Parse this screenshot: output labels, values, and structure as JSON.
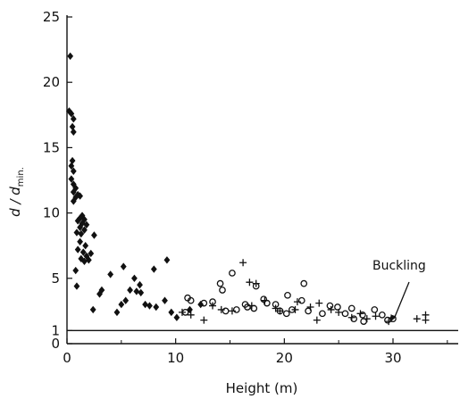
{
  "chart_data": {
    "type": "scatter",
    "title": "",
    "xlabel": "Height (m)",
    "ylabel": "d / d min.",
    "ylabel_parts": {
      "main": "d / d",
      "sub": "min."
    },
    "xlim": [
      0,
      36
    ],
    "ylim": [
      0,
      25
    ],
    "xticks": [
      0,
      10,
      20,
      30
    ],
    "xtick_labels": [
      "0",
      "10",
      "20",
      "30"
    ],
    "yticks": [
      0,
      1,
      5,
      10,
      15,
      20,
      25
    ],
    "ytick_labels": [
      "0",
      "1",
      "5",
      "10",
      "15",
      "20",
      "25"
    ],
    "grid": false,
    "reference_line": {
      "y": 1
    },
    "annotation": {
      "text": "Buckling",
      "points_to": [
        29.8,
        1.7
      ]
    },
    "series": [
      {
        "marker": "filled-diamond",
        "points": [
          [
            0.3,
            22.0
          ],
          [
            0.2,
            17.8
          ],
          [
            0.4,
            17.6
          ],
          [
            0.6,
            17.2
          ],
          [
            0.5,
            16.6
          ],
          [
            0.6,
            16.2
          ],
          [
            0.5,
            14.0
          ],
          [
            0.4,
            13.6
          ],
          [
            0.6,
            13.2
          ],
          [
            0.4,
            12.6
          ],
          [
            0.6,
            12.2
          ],
          [
            0.8,
            11.9
          ],
          [
            0.6,
            11.6
          ],
          [
            1.0,
            11.4
          ],
          [
            0.8,
            11.2
          ],
          [
            1.2,
            11.3
          ],
          [
            0.6,
            10.9
          ],
          [
            1.4,
            9.8
          ],
          [
            1.2,
            9.6
          ],
          [
            1.6,
            9.5
          ],
          [
            1.0,
            9.4
          ],
          [
            1.4,
            9.2
          ],
          [
            1.8,
            9.1
          ],
          [
            1.2,
            8.9
          ],
          [
            1.6,
            8.7
          ],
          [
            0.9,
            8.5
          ],
          [
            1.3,
            8.4
          ],
          [
            2.5,
            8.3
          ],
          [
            1.2,
            7.8
          ],
          [
            1.7,
            7.5
          ],
          [
            1.0,
            7.2
          ],
          [
            1.5,
            7.0
          ],
          [
            2.2,
            6.9
          ],
          [
            1.8,
            6.7
          ],
          [
            1.3,
            6.5
          ],
          [
            1.6,
            6.3
          ],
          [
            2.0,
            6.4
          ],
          [
            0.8,
            5.6
          ],
          [
            0.9,
            4.4
          ],
          [
            2.4,
            2.6
          ],
          [
            3.0,
            3.8
          ],
          [
            3.2,
            4.1
          ],
          [
            4.0,
            5.3
          ],
          [
            5.2,
            5.9
          ],
          [
            4.6,
            2.4
          ],
          [
            5.0,
            3.0
          ],
          [
            5.4,
            3.3
          ],
          [
            5.8,
            4.1
          ],
          [
            6.2,
            5.0
          ],
          [
            6.4,
            4.0
          ],
          [
            6.7,
            4.5
          ],
          [
            6.8,
            3.9
          ],
          [
            7.2,
            3.0
          ],
          [
            7.6,
            2.9
          ],
          [
            8.2,
            2.8
          ],
          [
            8.0,
            5.7
          ],
          [
            9.2,
            6.4
          ],
          [
            9.0,
            3.3
          ],
          [
            9.6,
            2.4
          ],
          [
            10.1,
            2.0
          ],
          [
            11.3,
            2.6
          ],
          [
            12.3,
            3.0
          ]
        ]
      },
      {
        "marker": "plus",
        "points": [
          [
            10.6,
            2.4
          ],
          [
            11.4,
            2.2
          ],
          [
            12.6,
            1.8
          ],
          [
            13.4,
            2.9
          ],
          [
            14.2,
            2.6
          ],
          [
            15.2,
            2.5
          ],
          [
            16.2,
            6.2
          ],
          [
            16.8,
            4.7
          ],
          [
            17.4,
            4.6
          ],
          [
            17.0,
            2.9
          ],
          [
            18.2,
            3.3
          ],
          [
            19.2,
            2.7
          ],
          [
            19.6,
            2.5
          ],
          [
            21.0,
            2.6
          ],
          [
            21.2,
            3.2
          ],
          [
            22.4,
            2.8
          ],
          [
            23.0,
            1.8
          ],
          [
            23.2,
            3.1
          ],
          [
            24.3,
            2.6
          ],
          [
            25.0,
            2.4
          ],
          [
            26.2,
            2.0
          ],
          [
            27.0,
            2.3
          ],
          [
            27.6,
            1.9
          ],
          [
            28.4,
            2.1
          ],
          [
            29.6,
            1.7
          ],
          [
            32.2,
            1.9
          ],
          [
            33.0,
            2.2
          ],
          [
            33.0,
            1.8
          ]
        ]
      },
      {
        "marker": "open-circle",
        "points": [
          [
            10.9,
            2.4
          ],
          [
            11.1,
            3.5
          ],
          [
            11.4,
            3.3
          ],
          [
            12.6,
            3.1
          ],
          [
            13.4,
            3.2
          ],
          [
            14.1,
            4.6
          ],
          [
            14.3,
            4.1
          ],
          [
            14.6,
            2.5
          ],
          [
            15.2,
            5.4
          ],
          [
            15.6,
            2.6
          ],
          [
            16.4,
            3.0
          ],
          [
            16.6,
            2.8
          ],
          [
            17.2,
            2.7
          ],
          [
            17.4,
            4.4
          ],
          [
            18.1,
            3.4
          ],
          [
            18.4,
            3.1
          ],
          [
            19.2,
            3.0
          ],
          [
            19.6,
            2.5
          ],
          [
            20.2,
            2.3
          ],
          [
            20.3,
            3.7
          ],
          [
            20.7,
            2.6
          ],
          [
            21.6,
            3.3
          ],
          [
            21.8,
            4.6
          ],
          [
            22.2,
            2.5
          ],
          [
            23.5,
            2.3
          ],
          [
            24.2,
            2.9
          ],
          [
            24.9,
            2.8
          ],
          [
            25.6,
            2.3
          ],
          [
            26.2,
            2.7
          ],
          [
            26.4,
            1.9
          ],
          [
            27.2,
            2.2
          ],
          [
            27.3,
            1.7
          ],
          [
            28.3,
            2.6
          ],
          [
            29.0,
            2.2
          ],
          [
            29.5,
            1.8
          ],
          [
            30.0,
            1.9
          ]
        ]
      }
    ]
  }
}
